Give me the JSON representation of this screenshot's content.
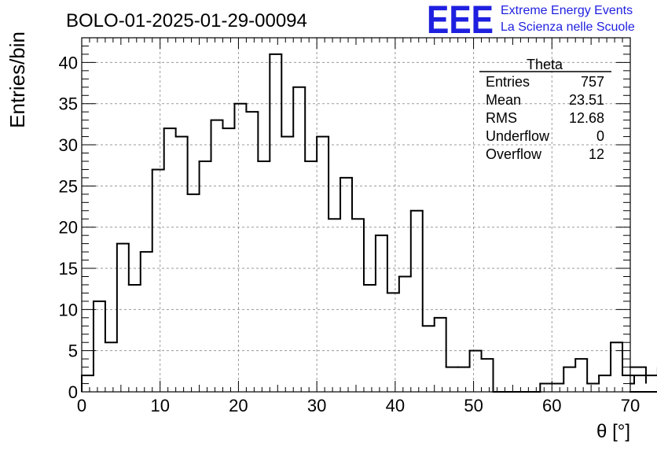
{
  "chart_data": {
    "type": "bar",
    "title": "BOLO-01-2025-01-29-00094",
    "xlabel": "θ [°]",
    "ylabel": "Entries/bin",
    "xlim": [
      0,
      70
    ],
    "ylim": [
      0,
      43
    ],
    "x_ticks": [
      0,
      10,
      20,
      30,
      40,
      50,
      60,
      70
    ],
    "y_ticks": [
      0,
      5,
      10,
      15,
      20,
      25,
      30,
      35,
      40
    ],
    "bin_width": 1.5,
    "grid": true,
    "histogram_style": "step",
    "values": [
      2,
      11,
      6,
      18,
      13,
      17,
      27,
      32,
      31,
      24,
      28,
      33,
      32,
      35,
      34,
      28,
      41,
      31,
      37,
      28,
      31,
      21,
      26,
      21,
      13,
      19,
      12,
      14,
      22,
      8,
      9,
      3,
      3,
      5,
      4,
      0,
      0,
      0,
      0,
      1,
      1,
      3,
      4,
      1,
      2,
      6,
      2,
      1,
      3,
      2,
      0
    ],
    "stats": {
      "name": "Theta",
      "rows": [
        {
          "label": "Entries",
          "value": "757"
        },
        {
          "label": "Mean",
          "value": "23.51"
        },
        {
          "label": "RMS",
          "value": "12.68"
        },
        {
          "label": "Underflow",
          "value": "0"
        },
        {
          "label": "Overflow",
          "value": "12"
        }
      ]
    }
  },
  "logo": {
    "mark": "EEE",
    "line1": "Extreme Energy Events",
    "line2": "La Scienza nelle Scuole",
    "color": "#1f1fe0"
  }
}
